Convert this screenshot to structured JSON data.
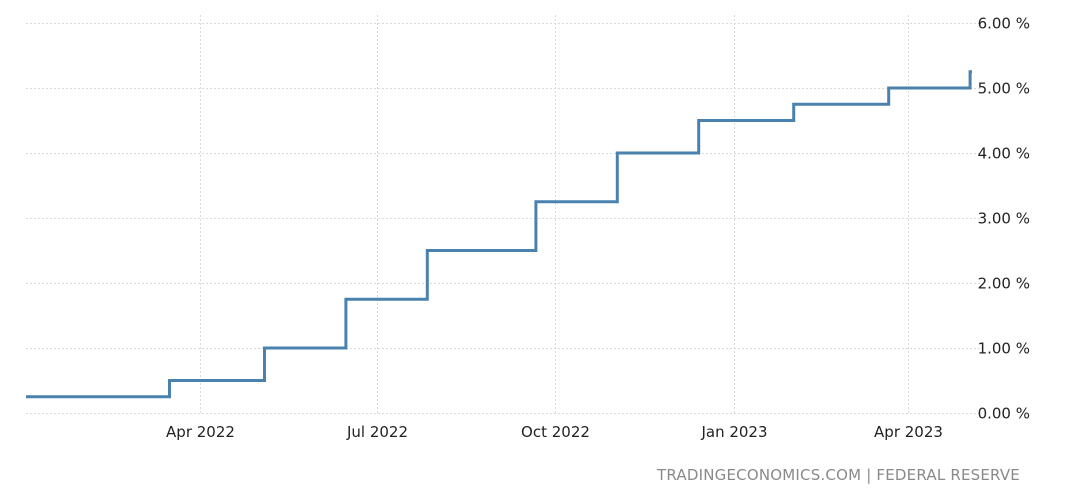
{
  "source_credit": "TRADINGECONOMICS.COM | FEDERAL RESERVE",
  "colors": {
    "line": "#4a82ad",
    "grid": "#d9d9d9",
    "tick_text": "#222222",
    "source_text": "#8a8a8a"
  },
  "chart_data": {
    "type": "line",
    "step": true,
    "title": "",
    "xlabel": "",
    "ylabel": "",
    "x_tick_labels": [
      {
        "label": "Apr 2022",
        "date": "2022-04-01"
      },
      {
        "label": "Jul 2022",
        "date": "2022-07-01"
      },
      {
        "label": "Oct 2022",
        "date": "2022-10-01"
      },
      {
        "label": "Jan 2023",
        "date": "2023-01-01"
      },
      {
        "label": "Apr 2023",
        "date": "2023-04-01"
      }
    ],
    "y_tick_labels": [
      "0.00 %",
      "1.00 %",
      "2.00 %",
      "3.00 %",
      "4.00 %",
      "5.00 %",
      "6.00 %"
    ],
    "y_ticks": [
      0,
      1,
      2,
      3,
      4,
      5,
      6
    ],
    "ylim": [
      0,
      6
    ],
    "xlim": [
      "2022-01-01",
      "2023-05-05"
    ],
    "y_axis_position": "right",
    "grid": true,
    "legend": "none",
    "series": [
      {
        "x": [
          "2022-01-01",
          "2022-03-16",
          "2022-05-04",
          "2022-06-15",
          "2022-07-27",
          "2022-09-21",
          "2022-11-02",
          "2022-12-14",
          "2023-02-01",
          "2023-03-22",
          "2023-05-03"
        ],
        "values": [
          0.25,
          0.5,
          1.0,
          1.75,
          2.5,
          3.25,
          4.0,
          4.5,
          4.75,
          5.0,
          5.25
        ]
      }
    ]
  }
}
